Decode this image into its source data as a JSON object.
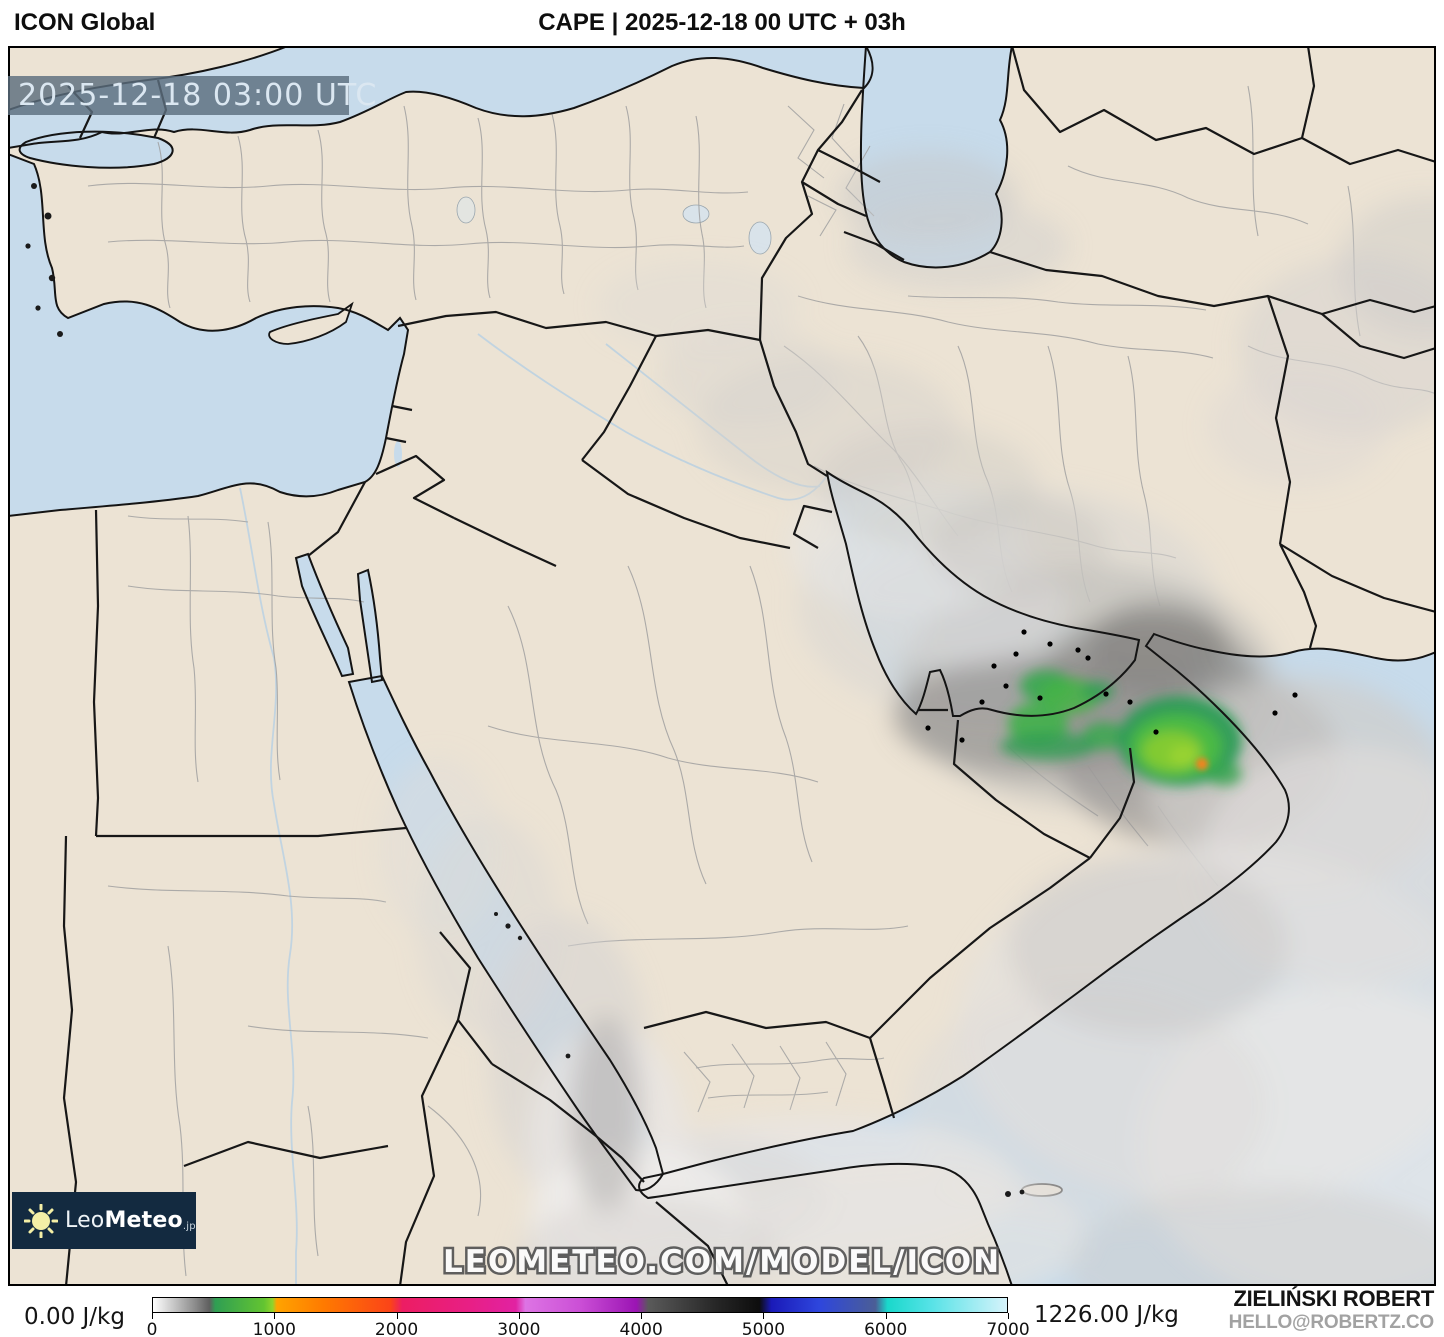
{
  "header": {
    "model": "ICON Global",
    "title": "CAPE | 2025-12-18 00 UTC + 03h"
  },
  "map": {
    "timestamp": "2025-12-18 03:00 UTC",
    "watermark": "LEOMETEO.COM/MODEL/ICON",
    "logo": {
      "part1": "Leo",
      "part2": "Meteo",
      "suffix": ".jp"
    }
  },
  "legend": {
    "min_value": "0.00 J/kg",
    "max_value": "1226.00 J/kg",
    "unit": "J/kg",
    "ticks": [
      "0",
      "1000",
      "2000",
      "3000",
      "4000",
      "5000",
      "6000",
      "7000"
    ],
    "range": [
      0,
      7000
    ],
    "gradient_stops": [
      [
        0,
        "#ffffff"
      ],
      [
        5,
        "#8a8a8a"
      ],
      [
        6.6,
        "#5f5f5f"
      ],
      [
        7.3,
        "#2f9e53"
      ],
      [
        13,
        "#63c431"
      ],
      [
        14,
        "#8fd42c"
      ],
      [
        14.5,
        "#ffa300"
      ],
      [
        20,
        "#ff7a00"
      ],
      [
        27.8,
        "#fb4418"
      ],
      [
        29.2,
        "#ec1d63"
      ],
      [
        37,
        "#e81f85"
      ],
      [
        42.5,
        "#e122a2"
      ],
      [
        43.6,
        "#dd74e4"
      ],
      [
        50,
        "#cb4fd6"
      ],
      [
        56.6,
        "#9b14b4"
      ],
      [
        58,
        "#5a5a5a"
      ],
      [
        66,
        "#262626"
      ],
      [
        71,
        "#0d0d0d"
      ],
      [
        72.4,
        "#1a1ab8"
      ],
      [
        78,
        "#2e46dd"
      ],
      [
        84.6,
        "#4b5e96"
      ],
      [
        86,
        "#19d8cb"
      ],
      [
        91,
        "#55e2e6"
      ],
      [
        100,
        "#d6f3fb"
      ]
    ]
  },
  "attribution": {
    "name": "ZIELIŃSKI ROBERT",
    "contact": "HELLO@ROBERTZ.CO"
  },
  "colors": {
    "land": "#ece3d4",
    "sea": "#c7dbeb",
    "border": "#171717",
    "admin": "#a0a0a0",
    "accent-green": "#45b447",
    "bright-green": "#9ad332",
    "max-orange": "#f5831f",
    "logo-bg": "#132a40",
    "sun": "#f4efa6"
  }
}
